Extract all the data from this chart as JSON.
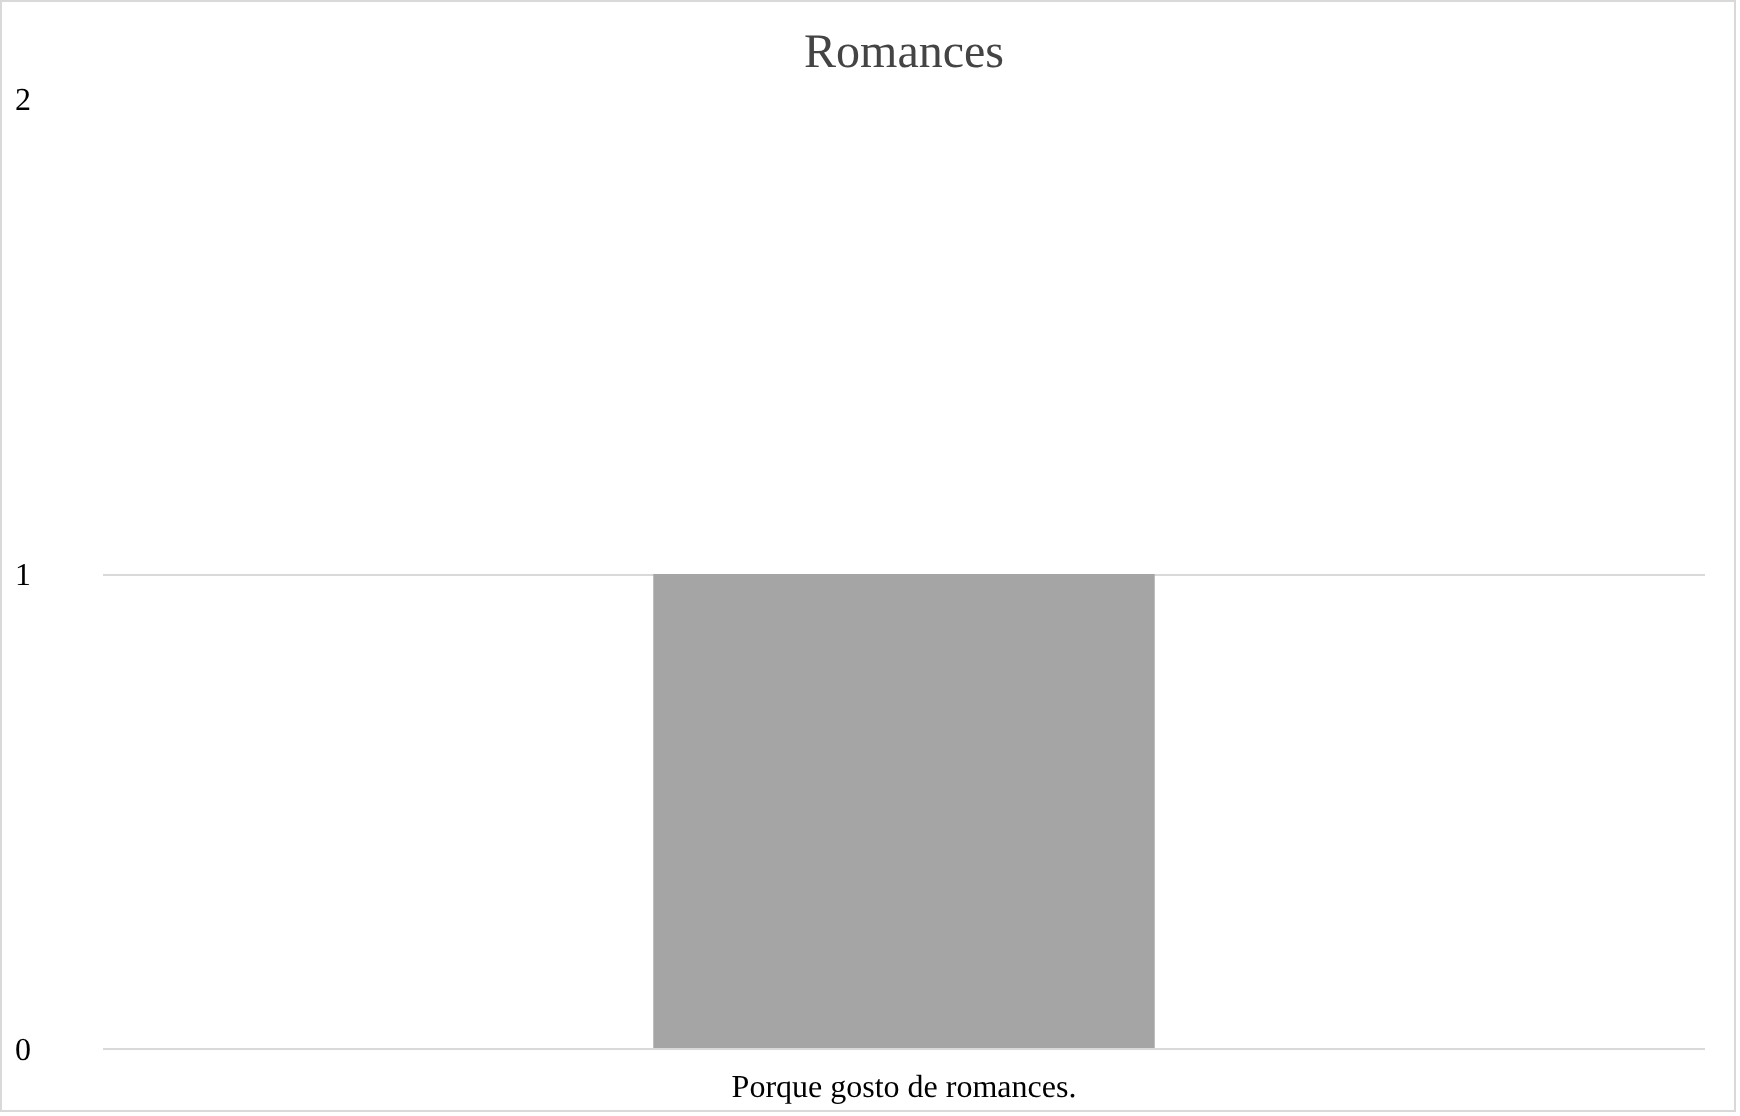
{
  "chart_data": {
    "type": "bar",
    "title": "Romances",
    "categories": [
      "Porque gosto de romances."
    ],
    "values": [
      1
    ],
    "color": "#a5a5a5",
    "ylim": [
      0,
      2
    ],
    "yticks": [
      0,
      1,
      2
    ],
    "grid": "y"
  }
}
